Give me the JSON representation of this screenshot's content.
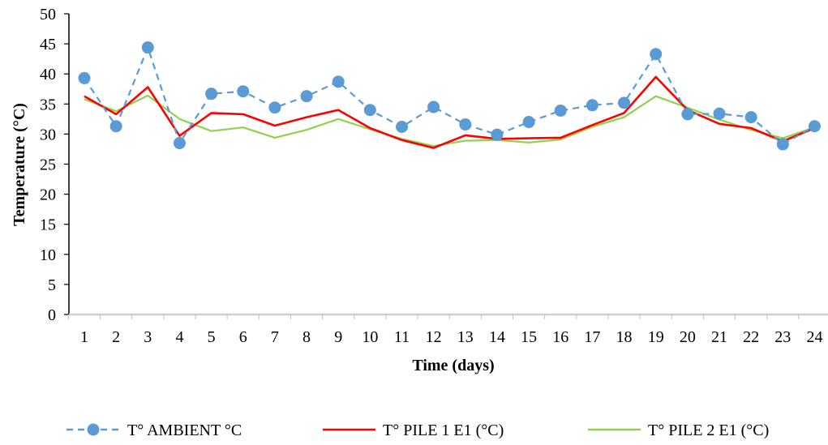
{
  "chart_data": {
    "type": "line",
    "title": "",
    "xlabel": "Time (days)",
    "ylabel": "Temperature (°C)",
    "x": [
      1,
      2,
      3,
      4,
      5,
      6,
      7,
      8,
      9,
      10,
      11,
      12,
      13,
      14,
      15,
      16,
      17,
      18,
      19,
      20,
      21,
      22,
      23,
      24
    ],
    "x_tick_labels": [
      "1",
      "2",
      "3",
      "4",
      "5",
      "6",
      "7",
      "8",
      "9",
      "10",
      "11",
      "12",
      "13",
      "14",
      "15",
      "16",
      "17",
      "18",
      "19",
      "20",
      "21",
      "22",
      "23",
      "24"
    ],
    "y_tick_labels": [
      "0",
      "5",
      "10",
      "15",
      "20",
      "25",
      "30",
      "35",
      "40",
      "45",
      "50"
    ],
    "ylim": [
      0,
      50
    ],
    "grid": false,
    "legend_position": "bottom",
    "series": [
      {
        "name": "T° AMBIENT °C",
        "color": "#5b9bd5",
        "style": "dashed-with-markers",
        "values": [
          39.3,
          31.3,
          44.4,
          28.5,
          36.7,
          37.1,
          34.4,
          36.3,
          38.7,
          34.0,
          31.2,
          34.5,
          31.6,
          29.9,
          32.0,
          33.9,
          34.8,
          35.2,
          43.3,
          33.3,
          33.4,
          32.8,
          28.3,
          31.3
        ]
      },
      {
        "name": "T° PILE 1 E1  (°C)",
        "color": "#ff0000",
        "style": "solid",
        "values": [
          36.3,
          33.3,
          37.8,
          29.7,
          33.5,
          33.3,
          31.4,
          32.8,
          34.0,
          31.0,
          29.0,
          27.7,
          29.8,
          29.2,
          29.3,
          29.4,
          31.5,
          33.5,
          39.5,
          34.0,
          31.7,
          31.0,
          28.8,
          31.0
        ]
      },
      {
        "name": "T° PILE 2 E1  (°C)",
        "color": "#92d050",
        "style": "solid",
        "values": [
          35.8,
          33.8,
          36.4,
          32.5,
          30.5,
          31.1,
          29.4,
          30.7,
          32.5,
          30.8,
          29.2,
          28.0,
          28.9,
          29.0,
          28.6,
          29.1,
          31.2,
          32.8,
          36.3,
          34.4,
          32.4,
          30.7,
          29.3,
          31.1
        ]
      }
    ]
  }
}
